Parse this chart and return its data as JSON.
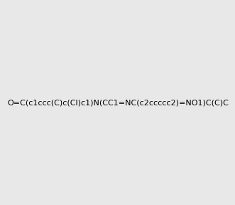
{
  "smiles": "O=C(c1ccc(C)c(Cl)c1)N(CC1=NC(c2ccccc2)=NO1)C(C)C",
  "image_size": 300,
  "background_color": "#e8e8e8",
  "title": "",
  "atom_colors": {
    "O": "#ff0000",
    "N": "#0000ff",
    "Cl": "#00cc00",
    "C": "#000000"
  }
}
